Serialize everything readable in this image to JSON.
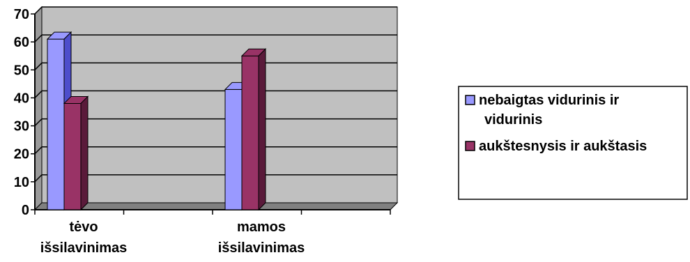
{
  "chart_data": {
    "type": "bar",
    "style": "3d-clustered-column",
    "categories": [
      [
        "tėvo",
        "išsilavinimas"
      ],
      [
        "mamos",
        "išsilavinimas"
      ]
    ],
    "series": [
      {
        "name": [
          "nebaigtas vidurinis ir",
          "vidurinis"
        ],
        "color": "#9999ff",
        "side_color": "#4d4dcc",
        "values": [
          61,
          43
        ]
      },
      {
        "name": [
          "aukštesnysis ir aukštasis"
        ],
        "color": "#993366",
        "side_color": "#5a1a3a",
        "values": [
          38,
          55
        ]
      }
    ],
    "yticks": [
      "0",
      "10",
      "20",
      "30",
      "40",
      "50",
      "60",
      "70"
    ],
    "ylim": [
      0,
      70
    ],
    "grid": true,
    "legend_position": "right",
    "plot_background": "#c0c0c0"
  }
}
